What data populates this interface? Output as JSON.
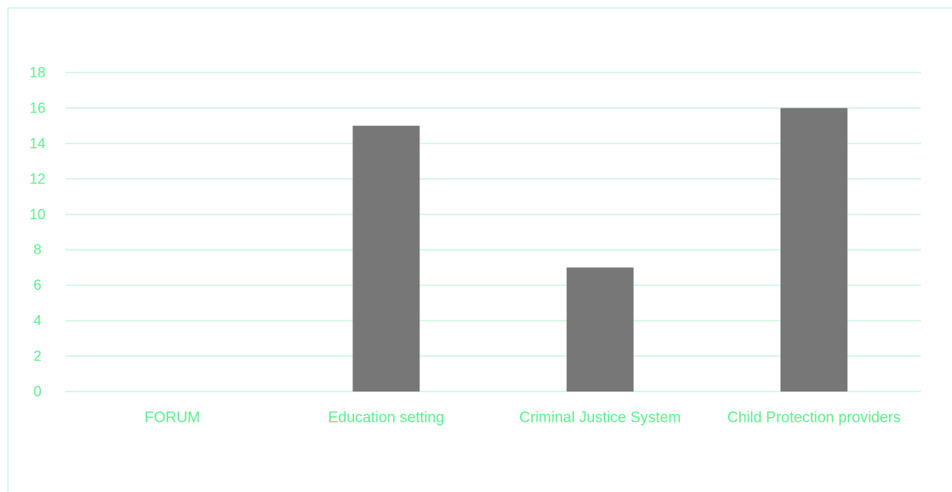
{
  "chart_data": {
    "type": "bar",
    "title": "",
    "xlabel": "",
    "ylabel": "",
    "categories": [
      "FORUM",
      "Education setting",
      "Criminal Justice System",
      "Child Protection  providers"
    ],
    "values": [
      0,
      15,
      7,
      16
    ],
    "ylim": [
      0,
      18
    ],
    "yticks": [
      0,
      2,
      4,
      6,
      8,
      10,
      12,
      14,
      16,
      18
    ],
    "grid": true,
    "legend": "none",
    "colors": {
      "bar": "#777777",
      "grid": "#c8f5dc",
      "text": "#5cf08c",
      "frame": "#c8f5dc"
    }
  }
}
